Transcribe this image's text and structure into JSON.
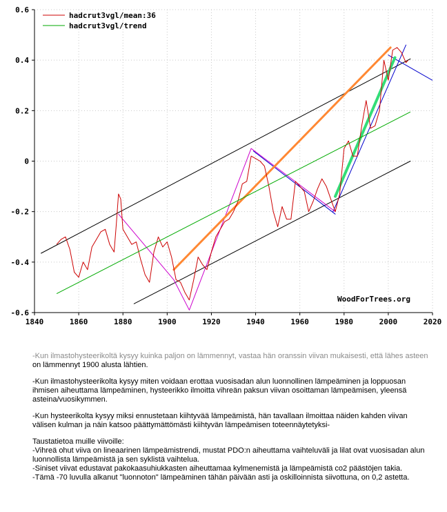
{
  "chart_data": {
    "type": "line",
    "title": "",
    "xlabel": "",
    "ylabel": "",
    "xlim": [
      1840,
      2020
    ],
    "ylim": [
      -0.6,
      0.6
    ],
    "x_ticks": [
      1840,
      1860,
      1880,
      1900,
      1920,
      1940,
      1960,
      1980,
      2000,
      2020
    ],
    "y_ticks": [
      -0.6,
      -0.4,
      -0.2,
      0,
      0.2,
      0.4,
      0.6
    ],
    "y_tick_labels": [
      "-0.6",
      "-0.4",
      "-0.2",
      "0",
      "0.2",
      "0.4",
      "0.6"
    ],
    "grid": true,
    "legend_position": "top-left",
    "credit": "WoodForTrees.org",
    "series": [
      {
        "name": "hadcrut3vgl/mean:36",
        "color": "#cc0000",
        "x": [
          1850,
          1852,
          1854,
          1856,
          1858,
          1860,
          1862,
          1864,
          1866,
          1868,
          1870,
          1872,
          1874,
          1876,
          1877,
          1878,
          1879,
          1880,
          1882,
          1884,
          1886,
          1888,
          1890,
          1892,
          1894,
          1896,
          1898,
          1900,
          1902,
          1904,
          1906,
          1908,
          1910,
          1912,
          1914,
          1916,
          1918,
          1920,
          1922,
          1924,
          1926,
          1928,
          1930,
          1932,
          1934,
          1936,
          1938,
          1940,
          1942,
          1944,
          1946,
          1948,
          1950,
          1952,
          1954,
          1956,
          1958,
          1960,
          1962,
          1964,
          1966,
          1968,
          1970,
          1972,
          1974,
          1976,
          1978,
          1980,
          1982,
          1984,
          1986,
          1988,
          1990,
          1992,
          1994,
          1996,
          1998,
          2000,
          2002,
          2004,
          2006,
          2008,
          2009
        ],
        "y": [
          -0.33,
          -0.31,
          -0.3,
          -0.35,
          -0.44,
          -0.46,
          -0.4,
          -0.43,
          -0.34,
          -0.31,
          -0.28,
          -0.27,
          -0.33,
          -0.36,
          -0.25,
          -0.13,
          -0.15,
          -0.27,
          -0.3,
          -0.33,
          -0.32,
          -0.39,
          -0.45,
          -0.48,
          -0.36,
          -0.3,
          -0.34,
          -0.32,
          -0.38,
          -0.47,
          -0.48,
          -0.52,
          -0.55,
          -0.47,
          -0.38,
          -0.41,
          -0.43,
          -0.36,
          -0.3,
          -0.27,
          -0.24,
          -0.23,
          -0.2,
          -0.16,
          -0.09,
          -0.08,
          0.02,
          0.01,
          0.0,
          -0.02,
          -0.1,
          -0.2,
          -0.26,
          -0.18,
          -0.23,
          -0.23,
          -0.08,
          -0.1,
          -0.12,
          -0.2,
          -0.16,
          -0.11,
          -0.07,
          -0.1,
          -0.15,
          -0.2,
          -0.13,
          0.05,
          0.08,
          0.02,
          0.02,
          0.14,
          0.24,
          0.13,
          0.14,
          0.2,
          0.4,
          0.32,
          0.44,
          0.45,
          0.43,
          0.39,
          0.4
        ]
      },
      {
        "name": "hadcrut3vgl/trend",
        "color": "#00aa00",
        "x": [
          1850,
          2010
        ],
        "y": [
          -0.525,
          0.195
        ]
      }
    ],
    "annotation_lines": [
      {
        "color": "#000000",
        "width": 1,
        "x": [
          1843,
          2010
        ],
        "y": [
          -0.365,
          0.405
        ]
      },
      {
        "color": "#000000",
        "width": 1,
        "x": [
          1885,
          2010
        ],
        "y": [
          -0.565,
          0.0
        ]
      },
      {
        "color": "#0000cc",
        "width": 1,
        "x": [
          1939,
          1976
        ],
        "y": [
          0.04,
          -0.21
        ]
      },
      {
        "color": "#0000cc",
        "width": 1,
        "x": [
          1975,
          2008
        ],
        "y": [
          -0.2,
          0.46
        ]
      },
      {
        "color": "#0000cc",
        "width": 1,
        "x": [
          2000,
          2020
        ],
        "y": [
          0.42,
          0.32
        ]
      },
      {
        "color": "#cc00cc",
        "width": 1,
        "x": [
          1878,
          1903,
          1910,
          1938,
          1976
        ],
        "y": [
          -0.21,
          -0.47,
          -0.59,
          0.05,
          -0.2
        ]
      },
      {
        "color": "#ff8833",
        "width": 3,
        "x": [
          1903,
          2001
        ],
        "y": [
          -0.43,
          0.45
        ]
      },
      {
        "color": "#33dd77",
        "width": 4,
        "x": [
          1976,
          2003
        ],
        "y": [
          -0.14,
          0.41
        ]
      }
    ]
  },
  "notes": {
    "p1_part1": "-Kun ilmastohysteerikoltä kysyy kuinka paljon on lämmennyt, vastaa hän oranssin viivan mukaisesti, että lähes asteen",
    "p1_part2": "on lämmennyt 1900 alusta lähtien.",
    "p2": "-Kun ilmastohysteerikolta kysyy miten voidaan erottaa vuosisadan alun luonnollinen lämpeäminen ja loppuosan ihmisen aiheuttama lämpeäminen, hysteerikko ilmoitta vihreän paksun viivan osoittaman lämpeämisen, yleensä asteina/vuosikymmen.",
    "p3": "-Kun hysteerikolta kysyy miksi ennustetaan kiihtyvää lämpeämistä, hän tavallaan ilmoittaa näiden kahden viivan välisen kulman ja näin katsoo päättymättömästi kiihtyvän lämpeämisen toteennäytetyksi-",
    "bg_title": "Taustatietoa muille viivoille:",
    "bg_lines": [
      "-Vihreä ohut viiva on lineaarinen lämpeämistrendi, mustat  PDO:n aiheuttama vaihteluväli ja lilat ovat vuosisadan alun luonnollista lämpeämistä  ja sen syklistä vaihtelua.",
      "-Siniset viivat edustavat  pakokaasuhiukkasten aiheuttamaa kylmenemistä ja lämpeämistä co2 päästöjen takia.",
      "-Tämä -70 luvulla alkanut \"luonnoton\"  lämpeäminen tähän päivään asti ja oskilloinnista siivottuna, on 0,2 astetta."
    ]
  }
}
